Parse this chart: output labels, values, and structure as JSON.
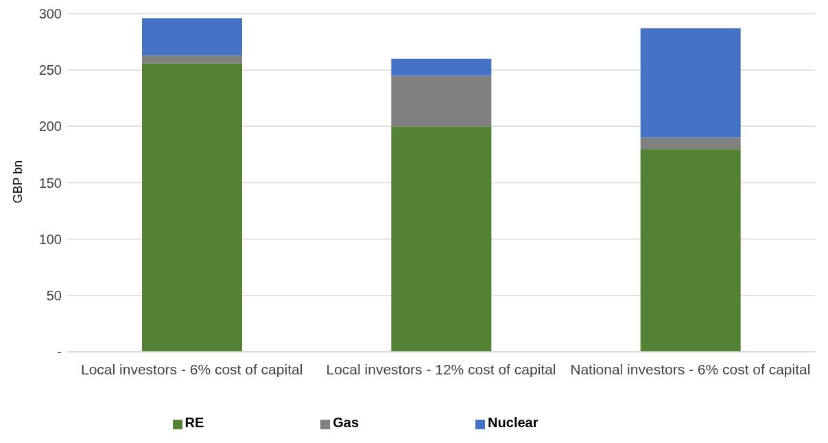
{
  "chart_data": {
    "type": "bar",
    "stacked": true,
    "ylabel": "GBP bn",
    "categories": [
      "Local investors - 6% cost of capital",
      "Local investors - 12% cost of capital",
      "National investors - 6% cost of capital"
    ],
    "series": [
      {
        "name": "RE",
        "color": "#548235",
        "values": [
          256,
          200,
          180
        ]
      },
      {
        "name": "Gas",
        "color": "#808080",
        "values": [
          7,
          45,
          10
        ]
      },
      {
        "name": "Nuclear",
        "color": "#4472c4",
        "values": [
          33,
          15,
          97
        ]
      }
    ],
    "ylim": [
      0,
      300
    ],
    "yticks": [
      {
        "value": 0,
        "label": "-"
      },
      50,
      100,
      150,
      200,
      250,
      300
    ],
    "grid": "y",
    "legend": "bottom"
  }
}
